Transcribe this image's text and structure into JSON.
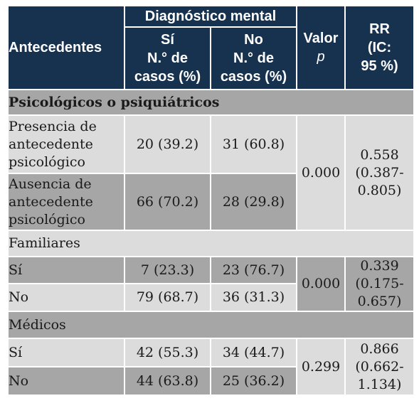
{
  "header": {
    "group_label": "Diagnóstico mental",
    "antecedentes": "Antecedentes",
    "si_line1": "Sí",
    "si_line2": "N.° de",
    "si_line3": "casos (%)",
    "no_line1": "No",
    "no_line2": "N.° de",
    "no_line3": "casos (%)",
    "valor_line1": "Valor",
    "valor_line2": "p",
    "rr_line1": "RR",
    "rr_line2": "(IC:",
    "rr_line3": "95 %)"
  },
  "sections": {
    "psych": {
      "title": "Psicológicos o psiquiátricos",
      "row1": {
        "l1": "Presencia de",
        "l2": "antecedente",
        "l3": "psicológico",
        "si": "20 (39.2)",
        "no": "31 (60.8)"
      },
      "row2": {
        "l1": "Ausencia de",
        "l2": "antecedente",
        "l3": "psicológico",
        "si": "66 (70.2)",
        "no": "28 (29.8)"
      },
      "p": "0.000",
      "rr1": "0.558",
      "rr2": "(0.387-",
      "rr3": "0.805)"
    },
    "fam": {
      "title": "Familiares",
      "row1": {
        "label": "Sí",
        "si": "7 (23.3)",
        "no": "23 (76.7)"
      },
      "row2": {
        "label": "No",
        "si": "79 (68.7)",
        "no": "36 (31.3)"
      },
      "p": "0.000",
      "rr1": "0.339",
      "rr2": "(0.175-",
      "rr3": "0.657)"
    },
    "med": {
      "title": "Médicos",
      "row1": {
        "label": "Sí",
        "si": "42 (55.3)",
        "no": "34 (44.7)"
      },
      "row2": {
        "label": "No",
        "si": "44 (63.8)",
        "no": "25 (36.2)"
      },
      "p": "0.299",
      "rr1": "0.866",
      "rr2": "(0.662-",
      "rr3": "1.134)"
    }
  }
}
